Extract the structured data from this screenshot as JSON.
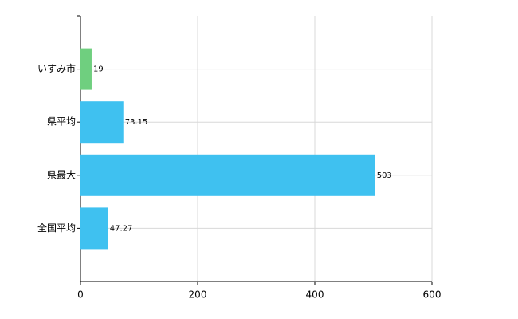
{
  "chart_data": {
    "type": "bar",
    "orientation": "horizontal",
    "categories": [
      "いすみ市",
      "県平均",
      "県最大",
      "全国平均"
    ],
    "values": [
      19,
      73.15,
      503,
      47.27
    ],
    "colors": [
      "#6fcf7f",
      "#3fc1f0",
      "#3fc1f0",
      "#3fc1f0"
    ],
    "xlim": [
      0,
      600
    ],
    "xticks": [
      0,
      200,
      400,
      600
    ],
    "grid": true
  }
}
